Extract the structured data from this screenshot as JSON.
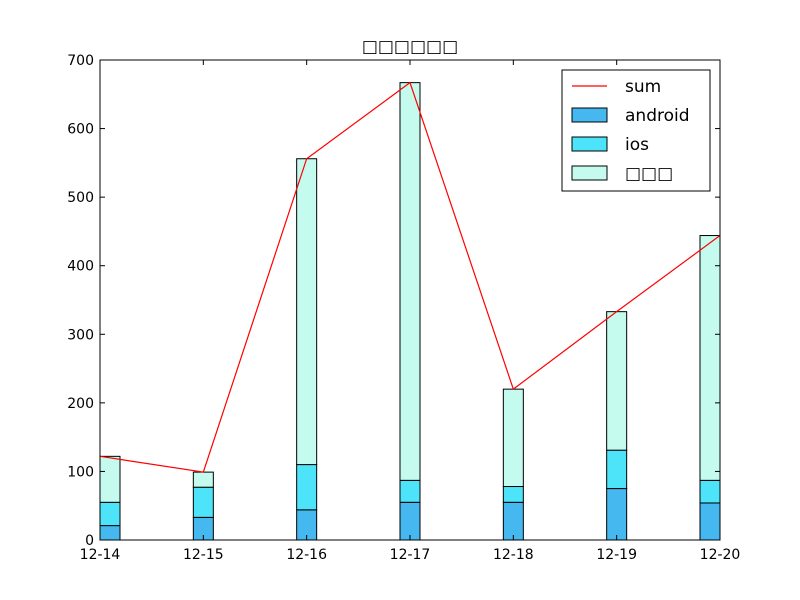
{
  "chart_data": {
    "type": "bar",
    "title": "□□□□□□",
    "xlabel": "",
    "ylabel": "",
    "categories": [
      "12-14",
      "12-15",
      "12-16",
      "12-17",
      "12-18",
      "12-19",
      "12-20"
    ],
    "ylim": [
      0,
      700
    ],
    "yticks": [
      0,
      100,
      200,
      300,
      400,
      500,
      600,
      700
    ],
    "stacked": true,
    "grid": false,
    "legend_position": "top-right",
    "series": [
      {
        "name": "android",
        "values": [
          21,
          33,
          44,
          55,
          55,
          75,
          54
        ],
        "color": "#45b9ef"
      },
      {
        "name": "ios",
        "values": [
          34,
          44,
          66,
          32,
          23,
          56,
          33
        ],
        "color": "#4de3f8"
      },
      {
        "name": "□□□",
        "values": [
          67,
          22,
          446,
          580,
          142,
          202,
          357
        ],
        "color": "#c4fbee"
      }
    ],
    "line": {
      "name": "sum",
      "values": [
        122,
        99,
        556,
        667,
        220,
        333,
        444
      ],
      "color": "#ff0000"
    }
  }
}
